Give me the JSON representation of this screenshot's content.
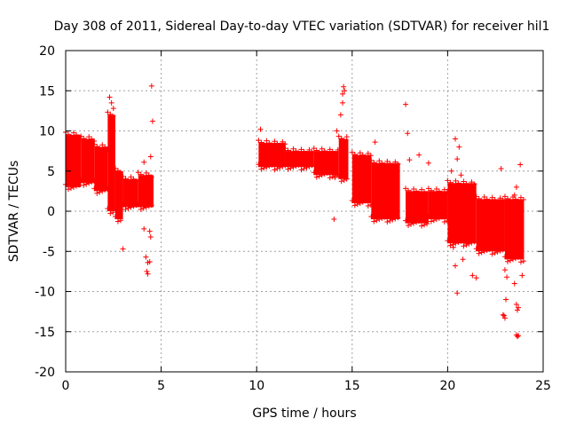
{
  "chart_data": {
    "type": "scatter",
    "title": "Day 308 of 2011, Sidereal Day-to-day VTEC variation (SDTVAR) for receiver hil1",
    "xlabel": "GPS time / hours",
    "ylabel": "SDTVAR / TECUs",
    "xlim": [
      0,
      25
    ],
    "ylim": [
      -20,
      20
    ],
    "xticks": [
      0,
      5,
      10,
      15,
      20,
      25
    ],
    "yticks": [
      -20,
      -15,
      -10,
      -5,
      0,
      5,
      10,
      15,
      20
    ],
    "grid": true,
    "marker": "+",
    "color": "#ff0000",
    "series": [
      {
        "name": "SDTVAR",
        "dense_bands": [
          {
            "x": [
              0.0,
              0.8
            ],
            "y_low": 3.0,
            "y_high": 9.5
          },
          {
            "x": [
              0.8,
              1.5
            ],
            "y_low": 3.5,
            "y_high": 9.0
          },
          {
            "x": [
              1.5,
              2.2
            ],
            "y_low": 2.5,
            "y_high": 8.0
          },
          {
            "x": [
              2.2,
              2.6
            ],
            "y_low": 0.0,
            "y_high": 12.0
          },
          {
            "x": [
              2.6,
              3.0
            ],
            "y_low": -1.0,
            "y_high": 5.0
          },
          {
            "x": [
              3.0,
              3.8
            ],
            "y_low": 0.5,
            "y_high": 4.0
          },
          {
            "x": [
              3.8,
              4.6
            ],
            "y_low": 0.5,
            "y_high": 4.5
          },
          {
            "x": [
              10.1,
              11.5
            ],
            "y_low": 5.5,
            "y_high": 8.5
          },
          {
            "x": [
              11.5,
              13.0
            ],
            "y_low": 5.5,
            "y_high": 7.5
          },
          {
            "x": [
              13.0,
              14.3
            ],
            "y_low": 4.5,
            "y_high": 7.5
          },
          {
            "x": [
              14.3,
              14.8
            ],
            "y_low": 4.0,
            "y_high": 9.0
          },
          {
            "x": [
              15.0,
              16.0
            ],
            "y_low": 1.0,
            "y_high": 7.0
          },
          {
            "x": [
              16.0,
              17.5
            ],
            "y_low": -1.0,
            "y_high": 6.0
          },
          {
            "x": [
              17.8,
              19.0
            ],
            "y_low": -1.5,
            "y_high": 2.5
          },
          {
            "x": [
              19.0,
              20.0
            ],
            "y_low": -1.0,
            "y_high": 2.5
          },
          {
            "x": [
              20.0,
              21.5
            ],
            "y_low": -4.0,
            "y_high": 3.5
          },
          {
            "x": [
              21.5,
              23.0
            ],
            "y_low": -5.0,
            "y_high": 1.5
          },
          {
            "x": [
              23.0,
              24.0
            ],
            "y_low": -6.0,
            "y_high": 1.5
          }
        ],
        "points": [
          [
            2.3,
            14.2
          ],
          [
            2.4,
            13.5
          ],
          [
            2.5,
            12.8
          ],
          [
            2.35,
            11.0
          ],
          [
            3.0,
            -4.7
          ],
          [
            4.1,
            -2.2
          ],
          [
            4.2,
            -5.7
          ],
          [
            4.3,
            -6.4
          ],
          [
            4.25,
            -7.5
          ],
          [
            4.3,
            -7.8
          ],
          [
            4.4,
            -2.5
          ],
          [
            4.45,
            -3.2
          ],
          [
            4.5,
            15.6
          ],
          [
            4.55,
            11.2
          ],
          [
            4.45,
            6.8
          ],
          [
            4.1,
            6.1
          ],
          [
            4.4,
            -6.3
          ],
          [
            10.2,
            10.2
          ],
          [
            14.2,
            10.0
          ],
          [
            14.4,
            12.0
          ],
          [
            14.5,
            14.6
          ],
          [
            14.55,
            15.5
          ],
          [
            14.6,
            15.0
          ],
          [
            14.5,
            13.5
          ],
          [
            14.05,
            -1.0
          ],
          [
            14.1,
            4.2
          ],
          [
            17.8,
            13.3
          ],
          [
            17.9,
            9.7
          ],
          [
            16.2,
            8.6
          ],
          [
            18.5,
            7.0
          ],
          [
            19.0,
            6.0
          ],
          [
            18.0,
            6.4
          ],
          [
            20.4,
            9.0
          ],
          [
            20.6,
            8.0
          ],
          [
            20.5,
            6.5
          ],
          [
            20.7,
            4.5
          ],
          [
            20.2,
            5.0
          ],
          [
            20.3,
            -4.5
          ],
          [
            20.4,
            -6.8
          ],
          [
            20.5,
            -10.2
          ],
          [
            20.8,
            -6.0
          ],
          [
            21.0,
            -4.0
          ],
          [
            21.3,
            -8.0
          ],
          [
            21.5,
            -8.3
          ],
          [
            22.8,
            5.3
          ],
          [
            23.0,
            -7.3
          ],
          [
            23.1,
            -8.2
          ],
          [
            22.9,
            -12.9
          ],
          [
            23.0,
            -13.3
          ],
          [
            22.95,
            -13.0
          ],
          [
            23.05,
            -11.0
          ],
          [
            23.5,
            -9.0
          ],
          [
            23.6,
            -11.6
          ],
          [
            23.7,
            -12.0
          ],
          [
            23.65,
            -12.3
          ],
          [
            23.6,
            -15.4
          ],
          [
            23.7,
            -15.5
          ],
          [
            23.65,
            -15.6
          ],
          [
            23.8,
            5.8
          ],
          [
            23.6,
            3.0
          ],
          [
            23.5,
            2.0
          ],
          [
            23.9,
            -8.0
          ]
        ]
      }
    ]
  }
}
